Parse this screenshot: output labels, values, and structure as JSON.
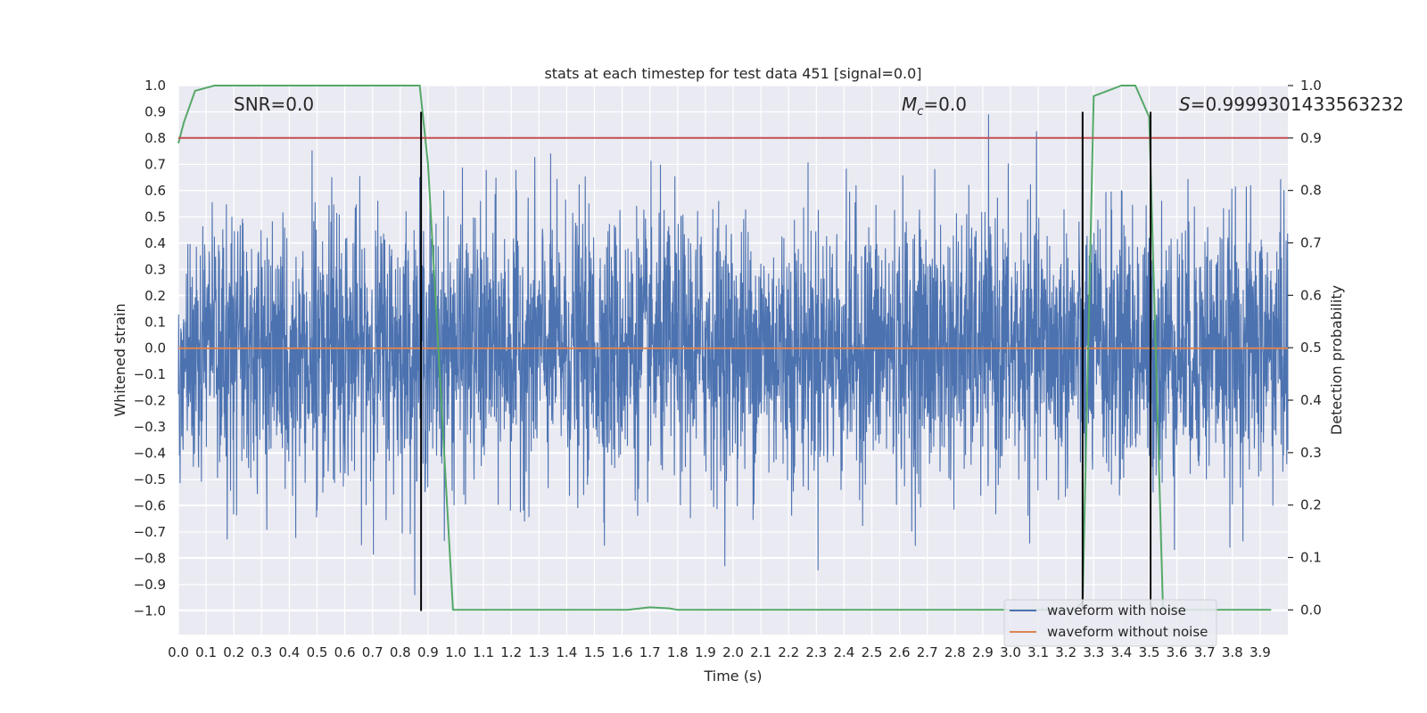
{
  "chart_data": {
    "type": "line",
    "title": "stats at each timestep for test data 451 [signal=0.0]",
    "xlabel": "Time (s)",
    "ylabel": "Whitened strain",
    "y2label": "Detection probability",
    "xlim": [
      0.0,
      4.0
    ],
    "ylim": [
      -1.09,
      1.0
    ],
    "y2lim": [
      -0.047,
      1.0
    ],
    "x_ticks": [
      "0.0",
      "0.1",
      "0.2",
      "0.3",
      "0.4",
      "0.5",
      "0.6",
      "0.7",
      "0.8",
      "0.9",
      "1.0",
      "1.1",
      "1.2",
      "1.3",
      "1.4",
      "1.5",
      "1.6",
      "1.7",
      "1.8",
      "1.9",
      "2.0",
      "2.1",
      "2.2",
      "2.3",
      "2.4",
      "2.5",
      "2.6",
      "2.7",
      "2.8",
      "2.9",
      "3.0",
      "3.1",
      "3.2",
      "3.3",
      "3.4",
      "3.5",
      "3.6",
      "3.7",
      "3.8",
      "3.9"
    ],
    "y_ticks": [
      "1.0",
      "0.9",
      "0.8",
      "0.7",
      "0.6",
      "0.5",
      "0.4",
      "0.3",
      "0.2",
      "0.1",
      "0.0",
      "−0.1",
      "−0.2",
      "−0.3",
      "−0.4",
      "−0.5",
      "−0.6",
      "−0.7",
      "−0.8",
      "−0.9",
      "−1.0"
    ],
    "y2_ticks": [
      "1.0",
      "0.9",
      "0.8",
      "0.7",
      "0.6",
      "0.5",
      "0.4",
      "0.3",
      "0.2",
      "0.1",
      "0.0"
    ],
    "grid": true,
    "legend": {
      "placement": "lower-right",
      "entries": [
        {
          "label": "waveform with noise",
          "color": "#4c72b0"
        },
        {
          "label": "waveform without noise",
          "color": "#dd8452"
        }
      ]
    },
    "annotations": {
      "snr": "SNR=0.0",
      "mc_symbol": "M",
      "mc_sub": "c",
      "mc_value": "=0.0",
      "s_symbol": "S",
      "s_value": "=0.9999301433563232"
    },
    "series": [
      {
        "name": "waveform with noise",
        "color": "#4c72b0",
        "axis": "left",
        "style": "noise",
        "amplitude_envelope": 0.2,
        "min": -1.0,
        "max": 0.9
      },
      {
        "name": "waveform without noise",
        "color": "#dd8452",
        "axis": "left",
        "x": [
          0.0,
          4.0
        ],
        "y": [
          0.0,
          0.0
        ]
      },
      {
        "color": "#55a868",
        "axis": "right",
        "x": [
          0.0,
          0.02,
          0.06,
          0.13,
          0.2,
          0.4,
          0.6,
          0.87,
          0.9,
          0.99,
          1.0,
          1.62,
          1.7,
          1.77,
          1.8,
          3.23,
          3.26,
          3.3,
          3.4,
          3.45,
          3.5,
          3.55,
          3.6,
          3.94
        ],
        "y": [
          0.89,
          0.93,
          0.99,
          1.0,
          1.0,
          1.0,
          1.0,
          1.0,
          0.85,
          0.0,
          0.0,
          0.0,
          0.005,
          0.003,
          0.0,
          0.0,
          0.015,
          0.98,
          1.0,
          1.0,
          0.94,
          0.0,
          0.0,
          0.0
        ]
      },
      {
        "color": "#c44e52",
        "axis": "right",
        "x": [
          0.0,
          4.0
        ],
        "y": [
          0.9,
          0.9
        ]
      }
    ],
    "vertical_lines": [
      {
        "x": 0.875,
        "color": "#000000"
      },
      {
        "x": 3.26,
        "color": "#000000"
      },
      {
        "x": 3.505,
        "color": "#000000"
      }
    ]
  }
}
